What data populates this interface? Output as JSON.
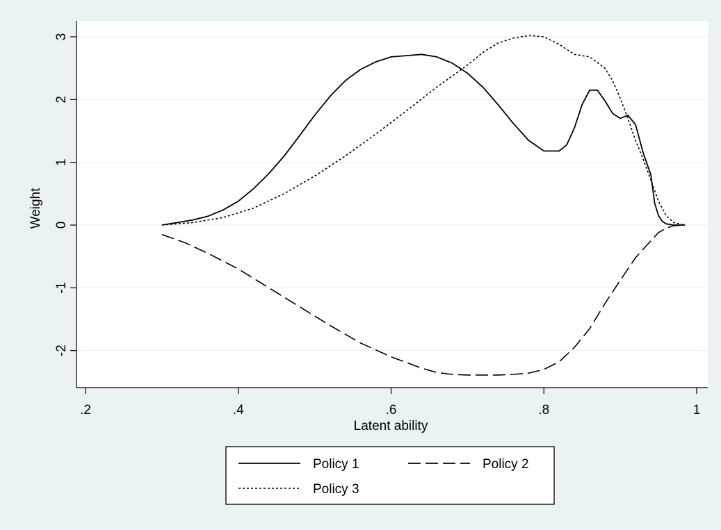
{
  "chart_data": {
    "type": "line",
    "title": "",
    "xlabel": "Latent ability",
    "ylabel": "Weight",
    "xlim": [
      0.2,
      1.0
    ],
    "ylim": [
      -2.6,
      3.3
    ],
    "x_ticks": [
      0.2,
      0.4,
      0.6,
      0.8,
      1.0
    ],
    "x_tick_labels": [
      ".2",
      ".4",
      ".6",
      ".8",
      "1"
    ],
    "y_ticks": [
      -2,
      -1,
      0,
      1,
      2,
      3
    ],
    "y_tick_labels": [
      "-2",
      "-1",
      "0",
      "1",
      "2",
      "3"
    ],
    "grid": "horizontal",
    "legend_position": "bottom",
    "series": [
      {
        "name": "Policy 1",
        "style": "solid",
        "x": [
          0.3,
          0.32,
          0.34,
          0.36,
          0.38,
          0.4,
          0.42,
          0.44,
          0.46,
          0.48,
          0.5,
          0.52,
          0.54,
          0.56,
          0.58,
          0.6,
          0.62,
          0.64,
          0.66,
          0.68,
          0.7,
          0.72,
          0.74,
          0.76,
          0.78,
          0.8,
          0.82,
          0.83,
          0.84,
          0.85,
          0.86,
          0.87,
          0.88,
          0.89,
          0.9,
          0.91,
          0.92,
          0.93,
          0.94,
          0.945,
          0.95,
          0.955,
          0.96,
          0.97,
          0.985
        ],
        "y": [
          0.0,
          0.04,
          0.08,
          0.14,
          0.24,
          0.38,
          0.58,
          0.82,
          1.1,
          1.42,
          1.75,
          2.05,
          2.3,
          2.48,
          2.6,
          2.68,
          2.7,
          2.72,
          2.68,
          2.58,
          2.42,
          2.2,
          1.92,
          1.62,
          1.35,
          1.18,
          1.18,
          1.28,
          1.55,
          1.92,
          2.15,
          2.15,
          1.98,
          1.78,
          1.7,
          1.75,
          1.6,
          1.15,
          0.8,
          0.35,
          0.15,
          0.06,
          0.02,
          0.0,
          0.0
        ]
      },
      {
        "name": "Policy 2",
        "style": "dashed",
        "x": [
          0.3,
          0.33,
          0.36,
          0.4,
          0.44,
          0.48,
          0.52,
          0.56,
          0.6,
          0.64,
          0.66,
          0.68,
          0.7,
          0.72,
          0.74,
          0.76,
          0.78,
          0.8,
          0.82,
          0.84,
          0.86,
          0.88,
          0.9,
          0.92,
          0.94,
          0.95,
          0.96,
          0.97,
          0.985
        ],
        "y": [
          -0.15,
          -0.28,
          -0.45,
          -0.7,
          -1.0,
          -1.3,
          -1.6,
          -1.88,
          -2.1,
          -2.28,
          -2.35,
          -2.38,
          -2.39,
          -2.39,
          -2.39,
          -2.38,
          -2.36,
          -2.3,
          -2.18,
          -1.95,
          -1.65,
          -1.25,
          -0.88,
          -0.52,
          -0.25,
          -0.12,
          -0.05,
          -0.01,
          0.0
        ]
      },
      {
        "name": "Policy 3",
        "style": "dotted",
        "x": [
          0.3,
          0.34,
          0.38,
          0.42,
          0.46,
          0.5,
          0.54,
          0.58,
          0.62,
          0.66,
          0.7,
          0.72,
          0.74,
          0.76,
          0.78,
          0.8,
          0.82,
          0.84,
          0.86,
          0.88,
          0.89,
          0.9,
          0.91,
          0.92,
          0.93,
          0.94,
          0.95,
          0.96,
          0.97,
          0.985
        ],
        "y": [
          0.0,
          0.04,
          0.12,
          0.27,
          0.5,
          0.78,
          1.1,
          1.45,
          1.82,
          2.2,
          2.55,
          2.75,
          2.9,
          2.98,
          3.02,
          3.0,
          2.88,
          2.72,
          2.68,
          2.5,
          2.3,
          2.02,
          1.7,
          1.35,
          1.05,
          0.72,
          0.38,
          0.15,
          0.04,
          0.0
        ]
      }
    ]
  }
}
